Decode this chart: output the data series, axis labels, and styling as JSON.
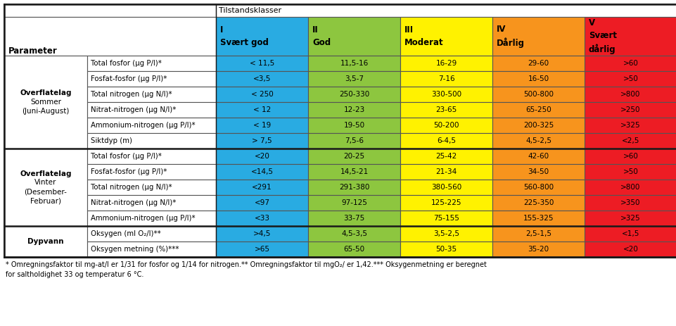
{
  "title": "Tilstandsklasser",
  "col_headers": [
    {
      "roman": "I",
      "name": "Svært god"
    },
    {
      "roman": "II",
      "name": "God"
    },
    {
      "roman": "III",
      "name": "Moderat"
    },
    {
      "roman": "IV",
      "name": "Dårlig"
    },
    {
      "roman": "V",
      "name": "Svært\ndårlig"
    }
  ],
  "col_colors": [
    "#29ABE2",
    "#8DC63F",
    "#FFF200",
    "#F7941D",
    "#ED1C24"
  ],
  "row_groups": [
    {
      "group_lines": [
        "Overflatelag",
        "Sommer",
        "(Juni-August)"
      ],
      "group_bold": [
        true,
        false,
        false
      ],
      "rows": [
        {
          "param": "Total fosfor (µg P/l)*",
          "values": [
            "< 11,5",
            "11,5-16",
            "16-29",
            "29-60",
            ">60"
          ]
        },
        {
          "param": "Fosfat-fosfor (µg P/l)*",
          "values": [
            "<3,5",
            "3,5-7",
            "7-16",
            "16-50",
            ">50"
          ]
        },
        {
          "param": "Total nitrogen (µg N/l)*",
          "values": [
            "< 250",
            "250-330",
            "330-500",
            "500-800",
            ">800"
          ]
        },
        {
          "param": "Nitrat-nitrogen (µg N/l)*",
          "values": [
            "< 12",
            "12-23",
            "23-65",
            "65-250",
            ">250"
          ]
        },
        {
          "param": "Ammonium-nitrogen (µg P/l)*",
          "values": [
            "< 19",
            "19-50",
            "50-200",
            "200-325",
            ">325"
          ]
        },
        {
          "param": "Siktdyp (m)",
          "values": [
            "> 7,5",
            "7,5-6",
            "6-4,5",
            "4,5-2,5",
            "<2,5"
          ]
        }
      ]
    },
    {
      "group_lines": [
        "Overflatelag",
        "Vinter",
        "(Desember-",
        "Februar)"
      ],
      "group_bold": [
        true,
        false,
        false,
        false
      ],
      "rows": [
        {
          "param": "Total fosfor (µg P/l)*",
          "values": [
            "<20",
            "20-25",
            "25-42",
            "42-60",
            ">60"
          ]
        },
        {
          "param": "Fosfat-fosfor (µg P/l)*",
          "values": [
            "<14,5",
            "14,5-21",
            "21-34",
            "34-50",
            ">50"
          ]
        },
        {
          "param": "Total nitrogen (µg N/l)*",
          "values": [
            "<291",
            "291-380",
            "380-560",
            "560-800",
            ">800"
          ]
        },
        {
          "param": "Nitrat-nitrogen (µg N/l)*",
          "values": [
            "<97",
            "97-125",
            "125-225",
            "225-350",
            ">350"
          ]
        },
        {
          "param": "Ammonium-nitrogen (µg P/l)*",
          "values": [
            "<33",
            "33-75",
            "75-155",
            "155-325",
            ">325"
          ]
        }
      ]
    },
    {
      "group_lines": [
        "Dypvann"
      ],
      "group_bold": [
        true
      ],
      "rows": [
        {
          "param": "Oksygen (ml O₂/l)**",
          "values": [
            ">4,5",
            "4,5-3,5",
            "3,5-2,5",
            "2,5-1,5",
            "<1,5"
          ]
        },
        {
          "param": "Oksygen metning (%)***",
          "values": [
            ">65",
            "65-50",
            "50-35",
            "35-20",
            "<20"
          ]
        }
      ]
    }
  ],
  "footnote1": "* Omregningsfaktor til mg-at/l er 1/31 for fosfor og 1/14 for nitrogen.** Omregningsfaktor til mgO₂/ er 1,42.*** Oksygenmetning er beregnet",
  "footnote2": "for saltholdighet 33 og temperatur 6 °C.",
  "border_dark": "#1a1a1a",
  "border_light": "#555555",
  "bg_color": "#FFFFFF"
}
